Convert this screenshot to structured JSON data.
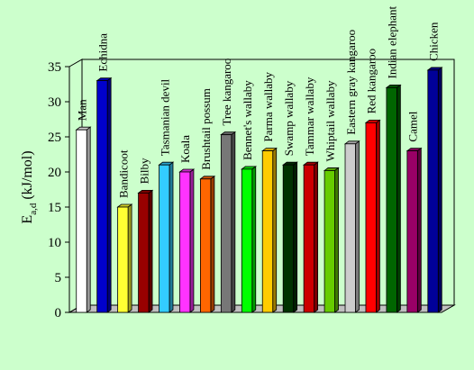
{
  "chart_data": {
    "type": "bar",
    "title": "",
    "xlabel": "",
    "ylabel_main": "E",
    "ylabel_sub": "a,d",
    "ylabel_unit": " (kJ/mol)",
    "ylim": [
      0,
      35
    ],
    "yticks": [
      "0",
      "5",
      "10",
      "15",
      "20",
      "25",
      "30",
      "35"
    ],
    "grid": false,
    "categories": [
      "Man",
      "Echidna",
      "Bandicoot",
      "Bilby",
      "Tasmanian  devil",
      "Koala",
      "Brushtail  possum",
      "Tree kangaroo",
      "Bennet's wallaby",
      "Parma wallaby",
      "Swamp wallaby",
      "Tammar  wallaby",
      "Whiptail  wallaby",
      "Eastern gray  kangaroo",
      "Red kangaroo",
      "Indian  elephant",
      "Camel",
      "Chicken"
    ],
    "values": [
      26,
      33,
      15,
      17,
      21,
      20,
      19,
      25.3,
      20.4,
      23,
      21,
      21,
      20.2,
      24,
      27,
      32,
      23,
      34.5
    ],
    "colors": [
      "#ffffff",
      "#0000cc",
      "#ffff33",
      "#990000",
      "#33ccff",
      "#ff33ff",
      "#ff6600",
      "#777777",
      "#00ff00",
      "#ffcc00",
      "#003300",
      "#cc0000",
      "#66cc00",
      "#cccccc",
      "#ff0000",
      "#006600",
      "#990066",
      "#000099"
    ]
  }
}
